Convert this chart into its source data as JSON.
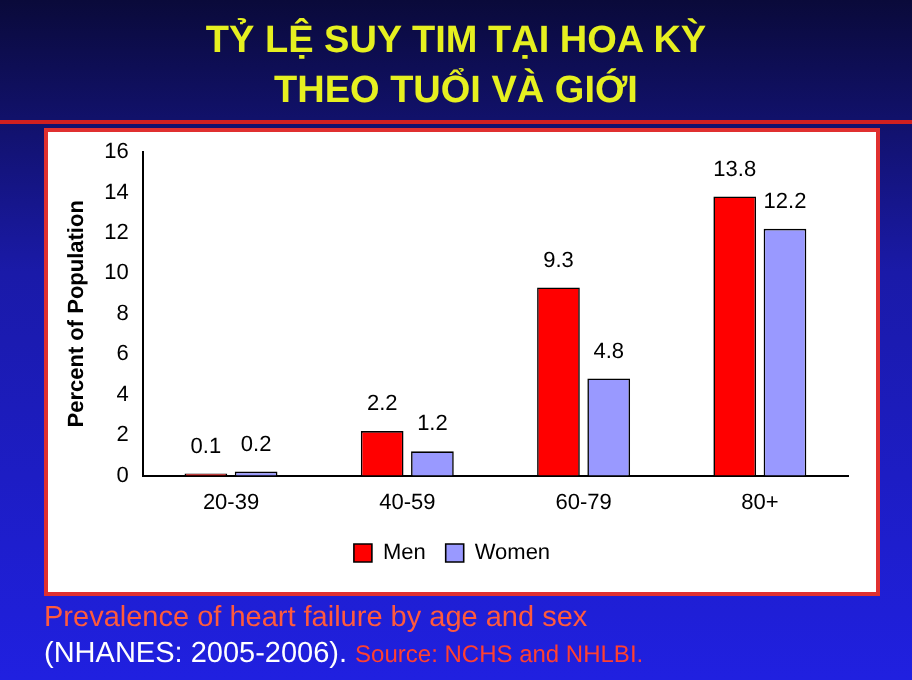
{
  "chart_data": {
    "type": "bar",
    "title": "TỶ LỆ SUY TIM TẠI HOA KỲ\nTHEO TUỔI VÀ GIỚI",
    "ylabel": "Percent of Population",
    "categories": [
      "20-39",
      "40-59",
      "60-79",
      "80+"
    ],
    "series": [
      {
        "name": "Men",
        "color": "#ff0000",
        "values": [
          0.1,
          2.2,
          9.3,
          13.8
        ]
      },
      {
        "name": "Women",
        "color": "#9999ff",
        "values": [
          0.2,
          1.2,
          4.8,
          12.2
        ]
      }
    ],
    "ylim": [
      0,
      16
    ],
    "yticks": [
      0,
      2,
      4,
      6,
      8,
      10,
      12,
      14,
      16
    ],
    "grid": false,
    "legend": "bottom",
    "data_labels": true,
    "annotations": [
      "Prevalence of heart failure by age and sex",
      "(NHANES: 2005-2006).",
      "Source: NCHS and NHLBI."
    ]
  }
}
